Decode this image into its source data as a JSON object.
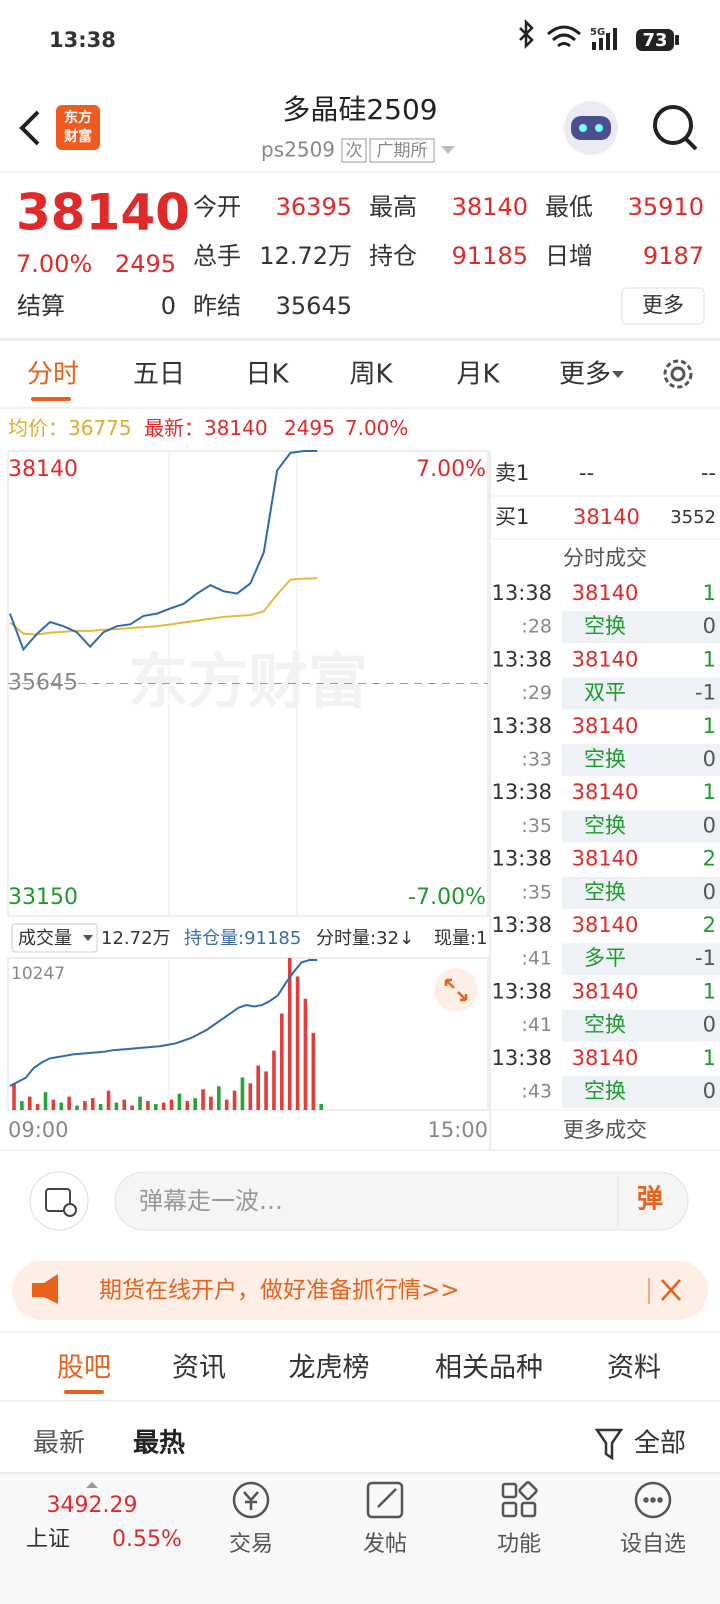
{
  "status": {
    "time": "13:38",
    "network": "5G",
    "battery": "73"
  },
  "header": {
    "logo": [
      "东方",
      "财富"
    ],
    "title": "多晶硅2509",
    "code": "ps2509",
    "tags": [
      "次",
      "广期所"
    ]
  },
  "quote": {
    "price": "38140",
    "change_pct": "7.00%",
    "change": "2495",
    "fields": [
      {
        "label": "今开",
        "value": "36395"
      },
      {
        "label": "最高",
        "value": "38140"
      },
      {
        "label": "最低",
        "value": "35910"
      },
      {
        "label": "总手",
        "value": "12.72万"
      },
      {
        "label": "持仓",
        "value": "91185"
      },
      {
        "label": "日增",
        "value": "9187"
      }
    ],
    "settle_label": "结算",
    "settle": "0",
    "prev_label": "昨结",
    "prev": "35645",
    "more": "更多"
  },
  "tabs": [
    "分时",
    "五日",
    "日K",
    "周K",
    "月K",
    "更多"
  ],
  "chart_data": {
    "type": "line",
    "info": {
      "avg_label": "均价：",
      "avg": "36775",
      "last_label": "最新：",
      "last": "38140",
      "change": "2495",
      "change_pct": "7.00%"
    },
    "ylim": [
      33150,
      38140
    ],
    "yticks": [
      33150,
      35645,
      38140
    ],
    "pct_labels": [
      "7.00%",
      "-7.00%"
    ],
    "watermark": "东方财富",
    "x_labels": [
      "09:00",
      "15:00"
    ],
    "price_line": {
      "color": "#2e6cb0",
      "values": [
        36395,
        36010,
        36175,
        36305,
        36260,
        36195,
        36040,
        36195,
        36260,
        36280,
        36370,
        36395,
        36450,
        36500,
        36610,
        36700,
        36635,
        36610,
        36720,
        37050,
        37930,
        38120,
        38140,
        38140
      ]
    },
    "avg_line": {
      "color": "#e8b838",
      "values": [
        36300,
        36180,
        36170,
        36190,
        36200,
        36210,
        36210,
        36220,
        36230,
        36240,
        36250,
        36260,
        36280,
        36300,
        36320,
        36340,
        36360,
        36370,
        36380,
        36420,
        36600,
        36760,
        36770,
        36775
      ]
    },
    "volume": {
      "header": {
        "label": "成交量",
        "total": "12.72万",
        "oi": "持仓量:91185",
        "tick_vol": "分时量:32↓",
        "last_vol": "现量:1"
      },
      "ylim": [
        0,
        10247
      ],
      "yticks": [
        10247
      ],
      "up_color": "#e43b3b",
      "down_color": "#28a23a",
      "values": [
        1800,
        600,
        900,
        400,
        1200,
        700,
        500,
        900,
        300,
        600,
        800,
        400,
        1300,
        500,
        700,
        300,
        900,
        600,
        400,
        500,
        700,
        1100,
        600,
        800,
        1400,
        900,
        1600,
        700,
        1300,
        2200,
        1800,
        3000,
        2600,
        4000,
        6500,
        10247,
        9000,
        7500,
        5200,
        400
      ],
      "up": [
        true,
        false,
        true,
        true,
        false,
        true,
        false,
        true,
        false,
        true,
        true,
        false,
        true,
        false,
        true,
        true,
        false,
        true,
        false,
        true,
        true,
        false,
        true,
        false,
        true,
        true,
        false,
        true,
        true,
        false,
        true,
        true,
        true,
        true,
        true,
        true,
        true,
        true,
        true,
        false
      ],
      "oi_line": {
        "color": "#2e6cb0",
        "values": [
          81998,
          82300,
          82600,
          83300,
          83700,
          84000,
          84100,
          84200,
          84300,
          84350,
          84400,
          84450,
          84500,
          84600,
          84650,
          84700,
          84750,
          84800,
          84850,
          84900,
          85000,
          85100,
          85300,
          85500,
          85800,
          86100,
          86500,
          86900,
          87300,
          87700,
          87900,
          87800,
          87900,
          88200,
          88600,
          89500,
          90300,
          91000,
          91185,
          91185
        ]
      }
    }
  },
  "order_book": {
    "ask": {
      "label": "卖1",
      "price": "--",
      "vol": "--"
    },
    "bid": {
      "label": "买1",
      "price": "38140",
      "vol": "3552"
    },
    "title": "分时成交",
    "trades": [
      [
        "13:38",
        "38140",
        "1"
      ],
      [
        ":28",
        "空换",
        "0"
      ],
      [
        "13:38",
        "38140",
        "1"
      ],
      [
        ":29",
        "双平",
        "-1"
      ],
      [
        "13:38",
        "38140",
        "1"
      ],
      [
        ":33",
        "空换",
        "0"
      ],
      [
        "13:38",
        "38140",
        "1"
      ],
      [
        ":35",
        "空换",
        "0"
      ],
      [
        "13:38",
        "38140",
        "2"
      ],
      [
        ":35",
        "空换",
        "0"
      ],
      [
        "13:38",
        "38140",
        "2"
      ],
      [
        ":41",
        "多平",
        "-1"
      ],
      [
        "13:38",
        "38140",
        "1"
      ],
      [
        ":41",
        "空换",
        "0"
      ],
      [
        "13:38",
        "38140",
        "1"
      ],
      [
        ":43",
        "空换",
        "0"
      ]
    ],
    "more": "更多成交"
  },
  "comment": {
    "placeholder": "弹幕走一波…",
    "button": "弹"
  },
  "banner": "期货在线开户，做好准备抓行情>>",
  "sections": {
    "tabs": [
      "股吧",
      "资讯",
      "龙虎榜",
      "相关品种",
      "资料"
    ],
    "sub": [
      "最新",
      "最热"
    ],
    "filter": "全部"
  },
  "bottom": {
    "index": {
      "value": "3492.29",
      "name": "上证",
      "change": "0.55%"
    },
    "nav": [
      "交易",
      "发帖",
      "功能",
      "设自选"
    ]
  }
}
